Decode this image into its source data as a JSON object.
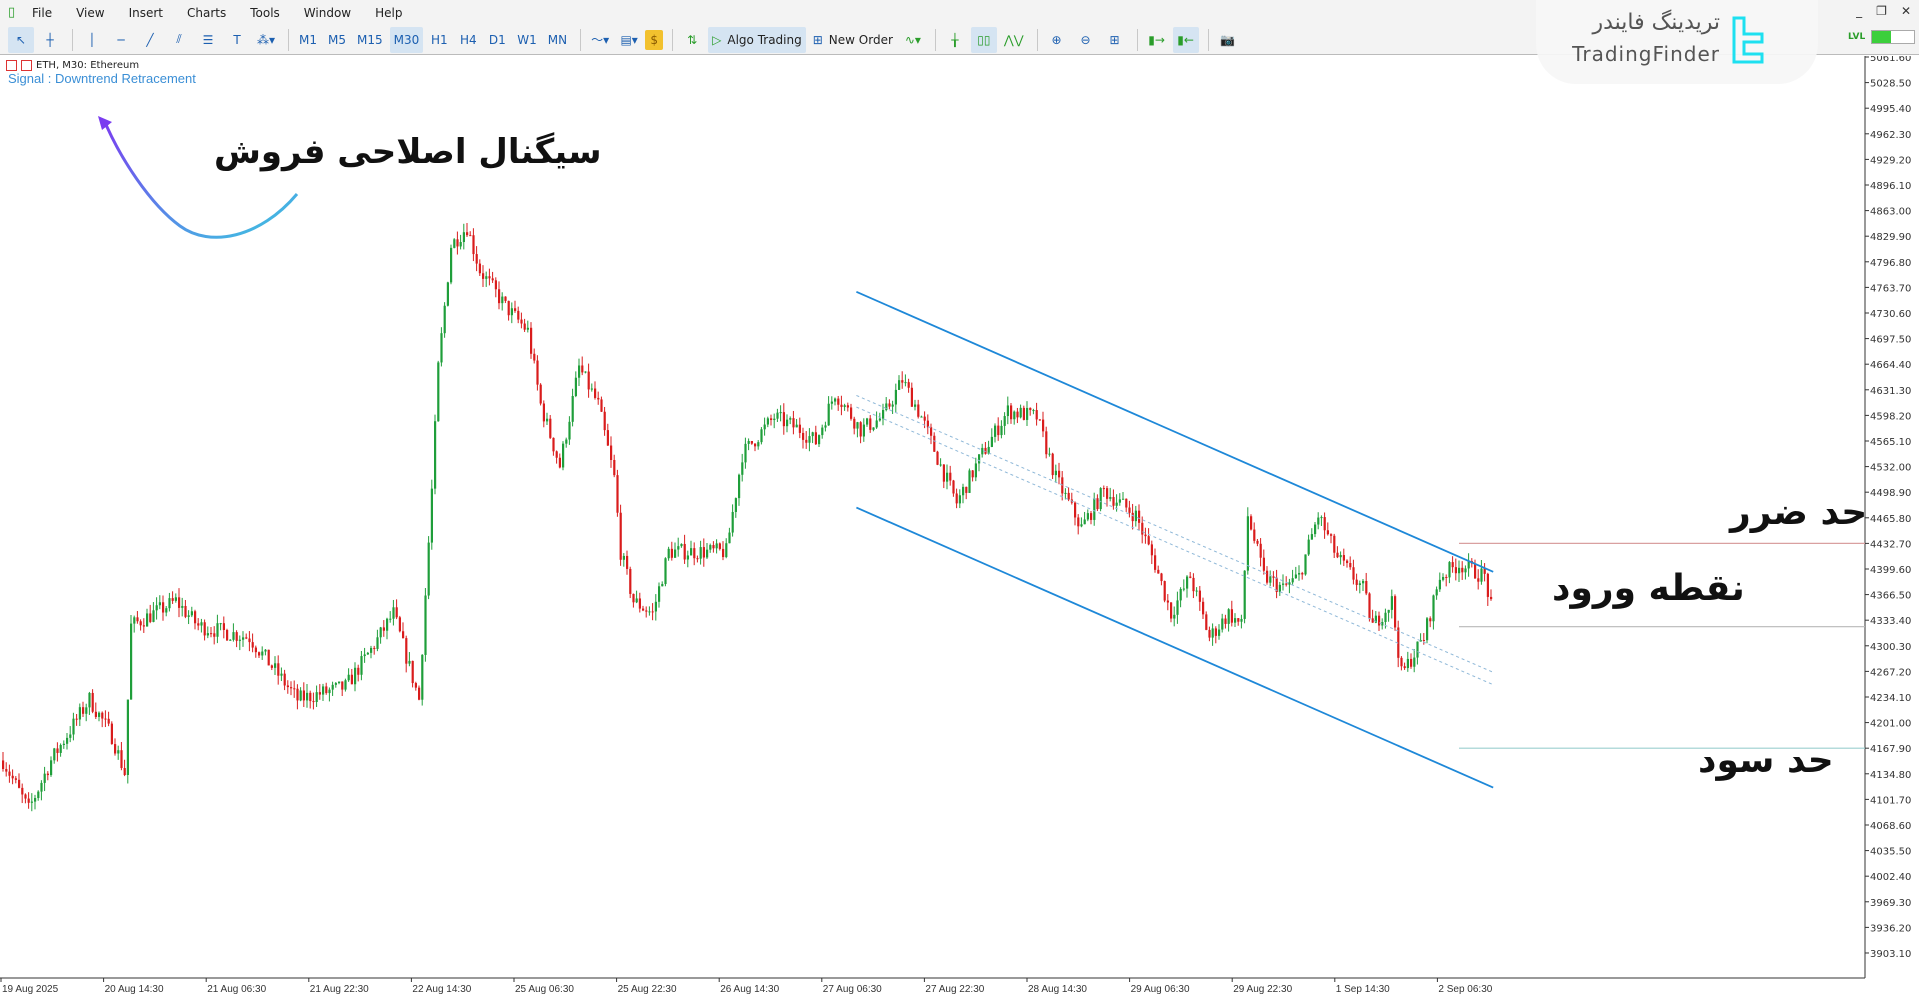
{
  "menu": {
    "items": [
      "File",
      "View",
      "Insert",
      "Charts",
      "Tools",
      "Window",
      "Help"
    ]
  },
  "window_controls": {
    "minimize": "_",
    "restore": "❐",
    "close": "✕"
  },
  "toolbar": {
    "timeframes": [
      "M1",
      "M5",
      "M15",
      "M30",
      "H1",
      "H4",
      "D1",
      "W1",
      "MN"
    ],
    "active_timeframe": "M30",
    "algo_trading_label": "Algo Trading",
    "new_order_label": "New Order",
    "level_badge": "LVL"
  },
  "watermark": {
    "fa": "تریدینگ فایندر",
    "en": "TradingFinder"
  },
  "chart_header": {
    "symbol": "ETH, M30:  Ethereum",
    "signal": "Signal : Downtrend Retracement"
  },
  "annotations": {
    "title": "سیگنال اصلاحی فروش",
    "stop_loss": "حد ضرر",
    "entry": "نقطه ورود",
    "take_profit": "حد سود"
  },
  "colors": {
    "bull": "#1f9e3a",
    "bear": "#d91c1c",
    "channel": "#1e88d8",
    "stop_loss_line": "#d9a0a0",
    "entry_line": "#b8b8b8",
    "take_profit_line": "#9ccfcf",
    "signal_text": "#3b8fd6"
  },
  "chart_data": {
    "type": "candlestick",
    "symbol": "ETH",
    "timeframe": "M30",
    "y_ticks": [
      "5061.60",
      "5028.50",
      "4995.40",
      "4962.30",
      "4929.20",
      "4896.10",
      "4863.00",
      "4829.90",
      "4796.80",
      "4763.70",
      "4730.60",
      "4697.50",
      "4664.40",
      "4631.30",
      "4598.20",
      "4565.10",
      "4532.00",
      "4498.90",
      "4465.80",
      "4432.70",
      "4399.60",
      "4366.50",
      "4333.40",
      "4300.30",
      "4267.20",
      "4234.10",
      "4201.00",
      "4167.90",
      "4134.80",
      "4101.70",
      "4068.60",
      "4035.50",
      "4002.40",
      "3969.30",
      "3936.20",
      "3903.10"
    ],
    "x_ticks": [
      "19 Aug 2025",
      "20 Aug 14:30",
      "21 Aug 06:30",
      "21 Aug 22:30",
      "22 Aug 14:30",
      "25 Aug 06:30",
      "25 Aug 22:30",
      "26 Aug 14:30",
      "27 Aug 06:30",
      "27 Aug 22:30",
      "28 Aug 14:30",
      "29 Aug 06:30",
      "29 Aug 22:30",
      "1 Sep 14:30",
      "2 Sep 06:30"
    ],
    "ylim": [
      3880,
      5075
    ],
    "close_path_bar_price": [
      [
        0,
        4152
      ],
      [
        8,
        4088
      ],
      [
        15,
        4152
      ],
      [
        27,
        4231
      ],
      [
        34,
        4184
      ],
      [
        38,
        4136
      ],
      [
        40,
        4326
      ],
      [
        54,
        4358
      ],
      [
        61,
        4326
      ],
      [
        77,
        4311
      ],
      [
        92,
        4231
      ],
      [
        107,
        4247
      ],
      [
        115,
        4295
      ],
      [
        122,
        4342
      ],
      [
        130,
        4231
      ],
      [
        134,
        4501
      ],
      [
        136,
        4660
      ],
      [
        140,
        4818
      ],
      [
        145,
        4842
      ],
      [
        149,
        4786
      ],
      [
        157,
        4739
      ],
      [
        164,
        4707
      ],
      [
        168,
        4612
      ],
      [
        174,
        4533
      ],
      [
        180,
        4660
      ],
      [
        186,
        4612
      ],
      [
        191,
        4517
      ],
      [
        193,
        4422
      ],
      [
        197,
        4358
      ],
      [
        203,
        4342
      ],
      [
        208,
        4422
      ],
      [
        218,
        4422
      ],
      [
        226,
        4422
      ],
      [
        231,
        4548
      ],
      [
        241,
        4596
      ],
      [
        249,
        4580
      ],
      [
        254,
        4564
      ],
      [
        260,
        4628
      ],
      [
        268,
        4580
      ],
      [
        275,
        4596
      ],
      [
        281,
        4644
      ],
      [
        287,
        4596
      ],
      [
        293,
        4533
      ],
      [
        298,
        4485
      ],
      [
        306,
        4548
      ],
      [
        314,
        4604
      ],
      [
        323,
        4596
      ],
      [
        329,
        4517
      ],
      [
        337,
        4453
      ],
      [
        344,
        4501
      ],
      [
        354,
        4469
      ],
      [
        360,
        4406
      ],
      [
        365,
        4342
      ],
      [
        371,
        4390
      ],
      [
        377,
        4311
      ],
      [
        383,
        4342
      ],
      [
        387,
        4326
      ],
      [
        389,
        4469
      ],
      [
        394,
        4390
      ],
      [
        400,
        4374
      ],
      [
        405,
        4390
      ],
      [
        411,
        4469
      ],
      [
        417,
        4414
      ],
      [
        425,
        4374
      ],
      [
        428,
        4326
      ],
      [
        434,
        4358
      ],
      [
        437,
        4263
      ],
      [
        444,
        4311
      ],
      [
        449,
        4390
      ],
      [
        455,
        4406
      ],
      [
        463,
        4390
      ],
      [
        465,
        4350
      ]
    ],
    "channel": {
      "upper": [
        [
          267,
          4758
        ],
        [
          466,
          4396
        ]
      ],
      "lower": [
        [
          267,
          4479
        ],
        [
          466,
          4117
        ]
      ],
      "mid_upper": [
        [
          267,
          4624
        ],
        [
          466,
          4266
        ]
      ],
      "mid_lower": [
        [
          267,
          4609
        ],
        [
          466,
          4250
        ]
      ]
    },
    "levels": {
      "stop_loss": 4432.7,
      "entry": 4325,
      "take_profit": 4167.9
    }
  }
}
